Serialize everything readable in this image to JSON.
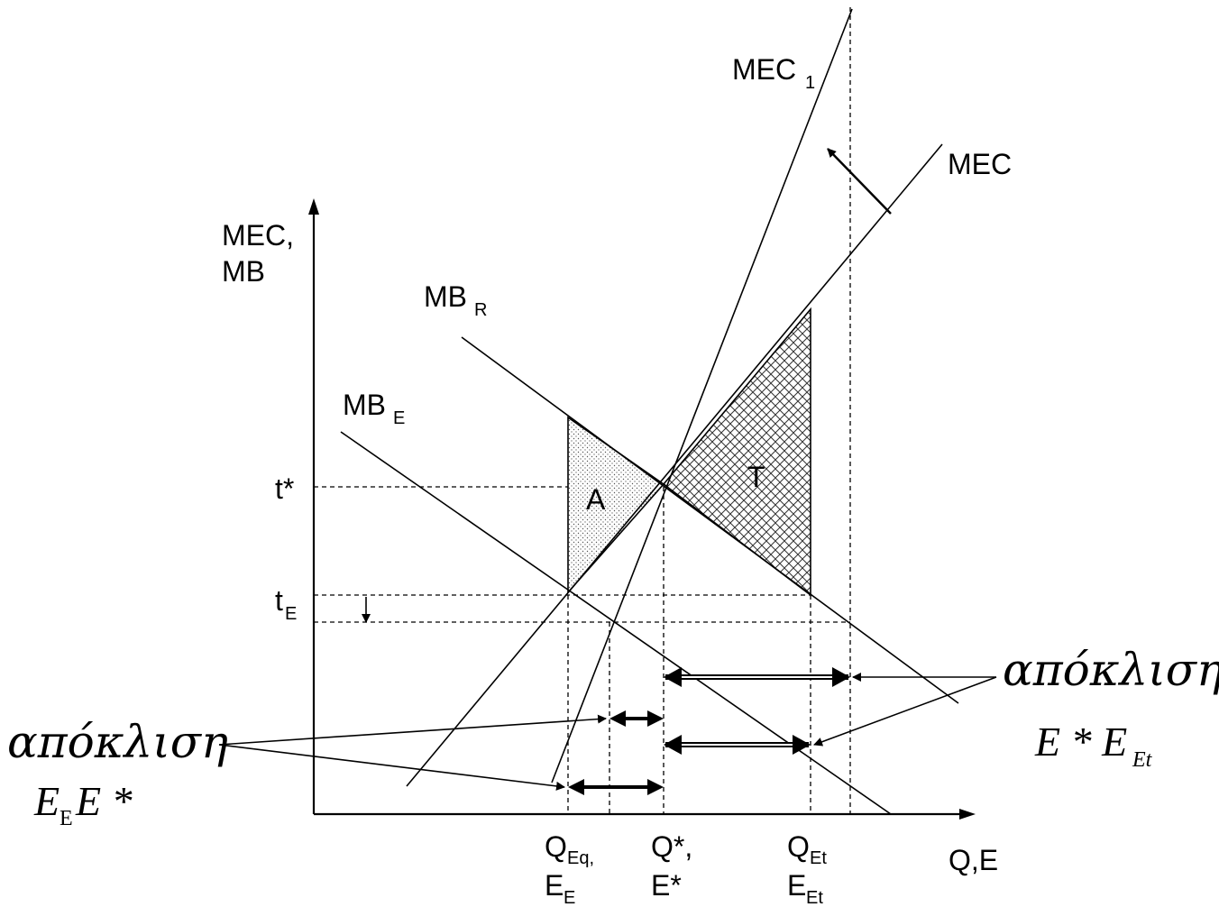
{
  "axes": {
    "y_label_line1": "MEC,",
    "y_label_line2": "MB",
    "x_label": "Q,E"
  },
  "curves": {
    "mec1": {
      "base": "MEC",
      "sub": "1"
    },
    "mec": {
      "base": "MEC"
    },
    "mbr": {
      "base": "MB",
      "sub": "R"
    },
    "mbe": {
      "base": "MB",
      "sub": "E"
    }
  },
  "areas": {
    "a": "A",
    "t": "T"
  },
  "y_ticks": {
    "t_star": "t*",
    "t_e_base": "t",
    "t_e_sub": "E"
  },
  "x_ticks": {
    "qeq_base": "Q",
    "qeq_sub": "Eq,",
    "ee_base": "E",
    "ee_sub": "E",
    "qstar": "Q*,",
    "estar": "E*",
    "qet_base": "Q",
    "qet_sub": "Et",
    "eet_base": "E",
    "eet_sub": "Et"
  },
  "annotations": {
    "left_word": "απόκλιση",
    "left_formula_e": "E",
    "left_formula_sub": "E",
    "left_formula_rest": "E *",
    "right_word": "απόκλιση",
    "right_formula_main": "E * E",
    "right_formula_sub": "Et"
  }
}
